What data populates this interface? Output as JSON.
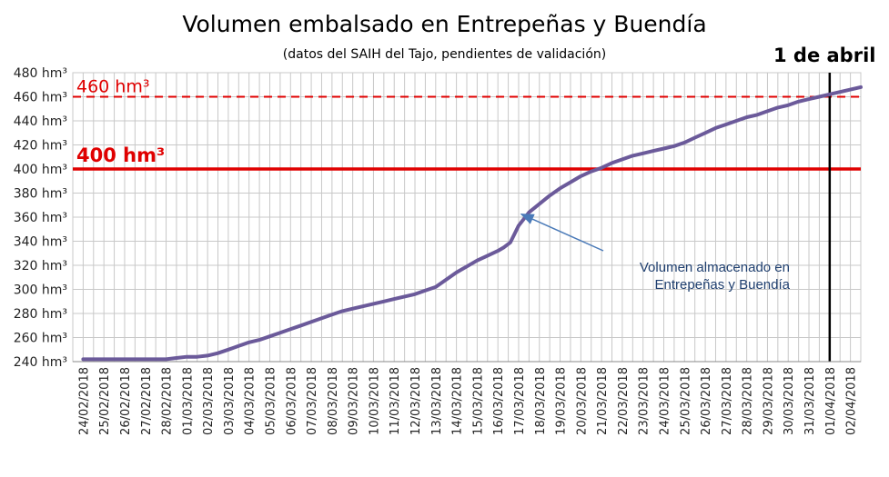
{
  "chart_data": {
    "type": "line",
    "title": "Volumen embalsado en Entrepeñas y Buendía",
    "subtitle": "(datos del SAIH del Tajo, pendientes de validación)",
    "ylim": [
      240,
      480
    ],
    "ytick_step": 20,
    "ytick_unit": "hm³",
    "grid": true,
    "categories": [
      "24/02/2018",
      "25/02/2018",
      "26/02/2018",
      "27/02/2018",
      "28/02/2018",
      "01/03/2018",
      "02/03/2018",
      "03/03/2018",
      "04/03/2018",
      "05/03/2018",
      "06/03/2018",
      "07/03/2018",
      "08/03/2018",
      "09/03/2018",
      "10/03/2018",
      "11/03/2018",
      "12/03/2018",
      "13/03/2018",
      "14/03/2018",
      "15/03/2018",
      "16/03/2018",
      "17/03/2018",
      "18/03/2018",
      "19/03/2018",
      "20/03/2018",
      "21/03/2018",
      "22/03/2018",
      "23/03/2018",
      "24/03/2018",
      "25/03/2018",
      "26/03/2018",
      "27/03/2018",
      "28/03/2018",
      "29/03/2018",
      "30/03/2018",
      "31/03/2018",
      "01/04/2018",
      "02/04/2018"
    ],
    "series": [
      {
        "name": "Volumen almacenado en Entrepeñas y Buendía",
        "color": "#6b5a9a",
        "x": [
          0,
          1,
          2,
          3,
          4,
          4.5,
          5,
          5.5,
          6,
          6.5,
          7,
          7.5,
          8,
          8.5,
          9,
          9.5,
          10,
          10.5,
          11,
          11.5,
          12,
          12.5,
          13,
          13.5,
          14,
          14.5,
          15,
          15.5,
          16,
          16.5,
          17,
          17.5,
          18,
          18.5,
          19,
          19.5,
          20,
          20.3,
          20.6,
          21,
          21.5,
          22,
          22.5,
          23,
          23.5,
          24,
          24.5,
          25,
          25.5,
          26,
          26.5,
          27,
          27.5,
          28,
          28.5,
          29,
          29.5,
          30,
          30.5,
          31,
          31.5,
          32,
          32.5,
          33,
          33.5,
          34,
          34.5,
          35,
          35.5,
          36,
          36.5,
          37,
          37.5
        ],
        "values": [
          242,
          242,
          242,
          242,
          242,
          243,
          244,
          244,
          245,
          247,
          250,
          253,
          256,
          258,
          261,
          264,
          267,
          270,
          273,
          276,
          279,
          282,
          284,
          286,
          288,
          290,
          292,
          294,
          296,
          299,
          302,
          308,
          314,
          319,
          324,
          328,
          332,
          335,
          339,
          353,
          364,
          371,
          378,
          384,
          389,
          394,
          398,
          401,
          405,
          408,
          411,
          413,
          415,
          417,
          419,
          422,
          426,
          430,
          434,
          437,
          440,
          443,
          445,
          448,
          451,
          453,
          456,
          458,
          460,
          462,
          464,
          466,
          468
        ]
      }
    ],
    "reference_lines": [
      {
        "label": "460 hm³",
        "value": 460,
        "color": "#e00000",
        "style": "dashed"
      },
      {
        "label": "400 hm³",
        "value": 400,
        "color": "#e00000",
        "style": "solid"
      }
    ],
    "vertical_marker": {
      "label": "1 de abril",
      "x_index": 36,
      "color": "#000000"
    },
    "annotation": {
      "lines": [
        "Volumen almacenado en",
        "Entrepeñas y Buendía"
      ],
      "color": "#1f3f6f",
      "arrow_target_x_index": 21,
      "arrow_target_value": 364
    }
  }
}
